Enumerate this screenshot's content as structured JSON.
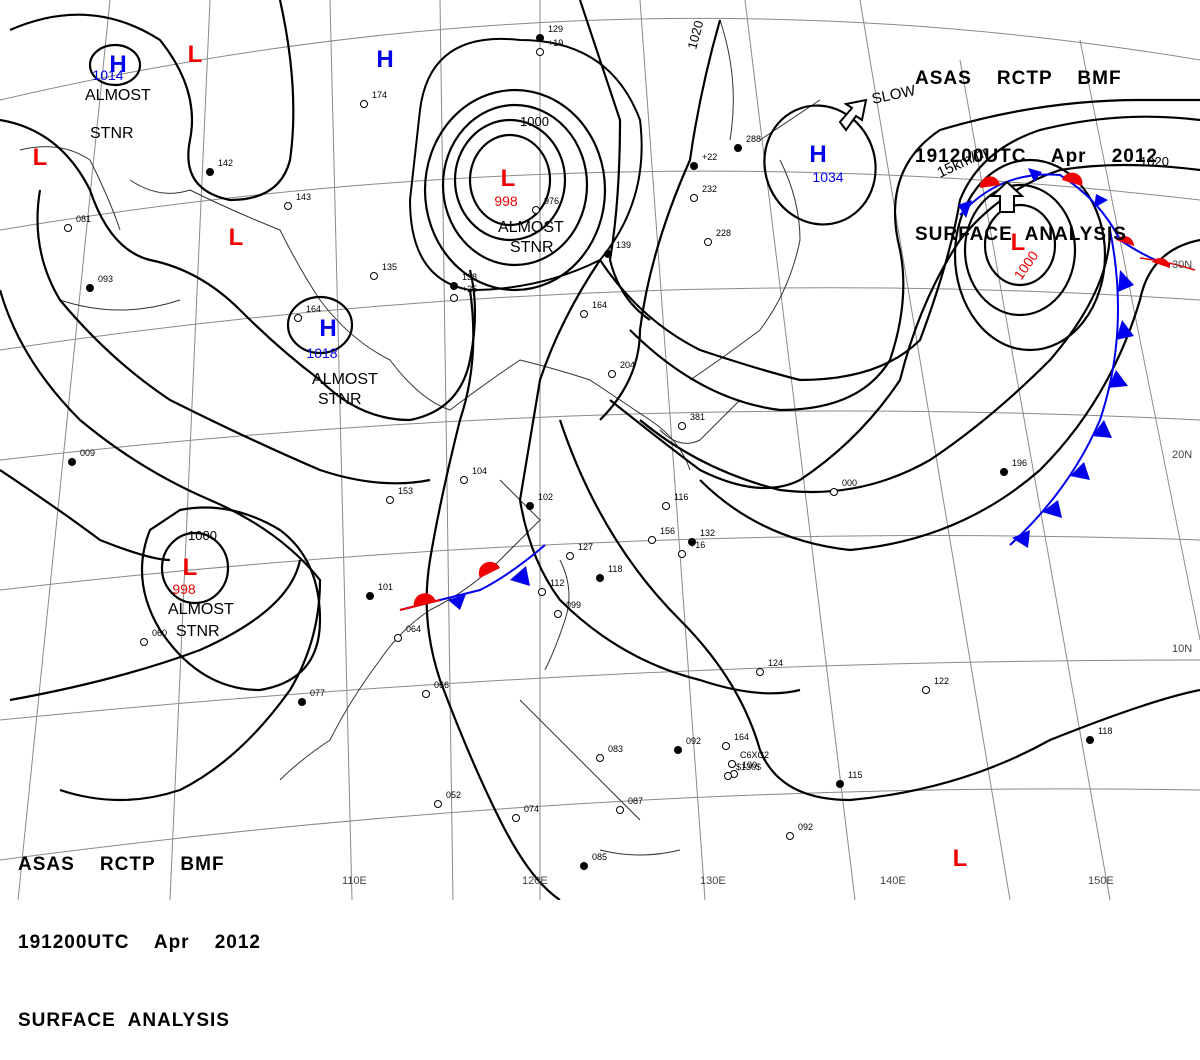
{
  "header_top": {
    "line1": "ASAS    RCTP    BMF",
    "line2": "191200UTC    Apr    2012",
    "line3": "SURFACE  ANALYSIS"
  },
  "header_bottom": {
    "line1": "ASAS    RCTP    BMF",
    "line2": "191200UTC    Apr    2012",
    "line3": "SURFACE  ANALYSIS"
  },
  "colors": {
    "high": "#0000ee",
    "low": "#ee0000",
    "cold_front": "#0000ee",
    "warm_front": "#ee0000",
    "isobar": "#000000",
    "grid": "#777777"
  },
  "pressure_centers": [
    {
      "kind": "H",
      "value": "1014",
      "note": "ALMOST STNR"
    },
    {
      "kind": "L",
      "value": "",
      "note": ""
    },
    {
      "kind": "L",
      "value": "",
      "note": ""
    },
    {
      "kind": "L",
      "value": "",
      "note": ""
    },
    {
      "kind": "H",
      "value": "",
      "note": ""
    },
    {
      "kind": "H",
      "value": "1018",
      "note": "ALMOST STNR"
    },
    {
      "kind": "L",
      "value": "998",
      "note": "ALMOST STNR"
    },
    {
      "kind": "L",
      "value": "998",
      "note": "ALMOST STNR"
    },
    {
      "kind": "H",
      "value": "1034",
      "note": ""
    },
    {
      "kind": "L",
      "value": "1000",
      "note": ""
    },
    {
      "kind": "L",
      "value": "",
      "note": ""
    }
  ],
  "isobar_labels": [
    "1000",
    "1000",
    "1020",
    "1020"
  ],
  "annotations": {
    "slow": "SLOW",
    "speed": "15km/hr"
  },
  "longitude_labels": [
    "110E",
    "120E",
    "130E",
    "140E",
    "150E"
  ],
  "latitude_labels": [
    "30N",
    "20N",
    "10N"
  ],
  "station_samples": [
    "129",
    "+19",
    "174",
    "142",
    "143",
    "081",
    "093",
    "135",
    "164",
    "138",
    "+25",
    "976",
    "139",
    "164",
    "204",
    "+22",
    "232",
    "228",
    "288",
    "381",
    "000",
    "196",
    "153",
    "104",
    "102",
    "116",
    "156",
    "132",
    "+16",
    "127",
    "118",
    "112",
    "099",
    "101",
    "064",
    "066",
    "077",
    "052",
    "074",
    "085",
    "087",
    "083",
    "092",
    "100",
    "164",
    "115",
    "124",
    "122",
    "118",
    "092",
    "060",
    "009",
    "C6XC2",
    "$130$"
  ]
}
